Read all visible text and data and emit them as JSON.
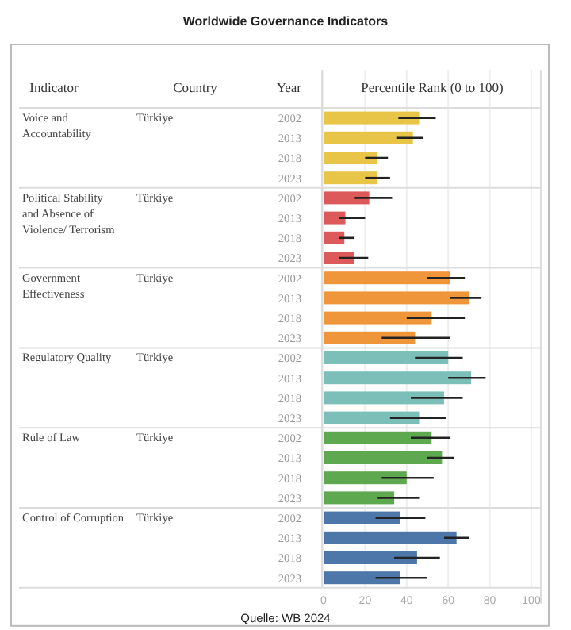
{
  "chart_data": {
    "type": "bar",
    "orientation": "horizontal",
    "title": "Worldwide Governance Indicators",
    "xlabel": "Percentile Rank (0 to 100)",
    "categories": [
      "2002",
      "2013",
      "2018",
      "2023",
      "2002",
      "2013",
      "2018",
      "2023",
      "2002",
      "2013",
      "2018",
      "2023",
      "2002",
      "2013",
      "2018",
      "2023",
      "2002",
      "2013",
      "2018",
      "2023",
      "2002",
      "2013",
      "2018",
      "2023"
    ],
    "values": [
      46,
      43,
      26,
      26,
      22,
      10.5,
      10,
      14.5,
      61,
      70,
      52,
      44,
      60,
      71,
      58,
      46,
      52,
      57,
      40,
      34,
      37,
      64,
      45,
      37
    ],
    "errors": [
      [
        36,
        54
      ],
      [
        35,
        48
      ],
      [
        20,
        31
      ],
      [
        20,
        32
      ],
      [
        15,
        33
      ],
      [
        7.5,
        20
      ],
      [
        7.5,
        14.5
      ],
      [
        7.5,
        21.5
      ],
      [
        50,
        68
      ],
      [
        61,
        76
      ],
      [
        40,
        68
      ],
      [
        28,
        61
      ],
      [
        44,
        67
      ],
      [
        60,
        78
      ],
      [
        42,
        67
      ],
      [
        32,
        59
      ],
      [
        42,
        61
      ],
      [
        50,
        63
      ],
      [
        28,
        53
      ],
      [
        26,
        46
      ],
      [
        25,
        49
      ],
      [
        58,
        70
      ],
      [
        34,
        56
      ],
      [
        25,
        50
      ]
    ],
    "colors": [
      "#e8c547",
      "#e8c547",
      "#e8c547",
      "#e8c547",
      "#dc5a5a",
      "#dc5a5a",
      "#dc5a5a",
      "#dc5a5a",
      "#f0963a",
      "#f0963a",
      "#f0963a",
      "#f0963a",
      "#7cbfb8",
      "#7cbfb8",
      "#7cbfb8",
      "#7cbfb8",
      "#5ea84f",
      "#5ea84f",
      "#5ea84f",
      "#5ea84f",
      "#4c77a8",
      "#4c77a8",
      "#4c77a8",
      "#4c77a8"
    ],
    "xlim": [
      0,
      100
    ],
    "xticks": [
      0,
      20,
      40,
      60,
      80,
      100
    ],
    "grid": "x",
    "annotations": [
      "Indicator",
      "Country",
      "Year",
      "Voice and Accountability",
      "Political Stability and Absence of Violence/ Terrorism",
      "Government Effectiveness",
      "Regulatory Quality",
      "Rule of Law",
      "Control of Corruption",
      "Türkiye",
      "Türkiye",
      "Türkiye",
      "Türkiye",
      "Türkiye",
      "Türkiye",
      "Quelle: WB 2024"
    ]
  }
}
